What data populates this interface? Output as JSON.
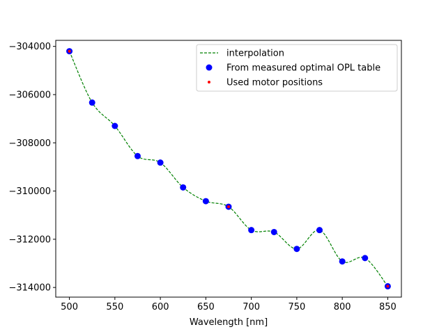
{
  "chart_data": {
    "type": "line",
    "title": "",
    "xlabel": "Wavelength [nm]",
    "ylabel": "",
    "xlim": [
      485,
      865
    ],
    "ylim": [
      -314400,
      -303750
    ],
    "xticks": [
      500,
      550,
      600,
      650,
      700,
      750,
      800,
      850
    ],
    "yticks": [
      -314000,
      -312000,
      -310000,
      -308000,
      -306000,
      -304000
    ],
    "xtick_labels": [
      "500",
      "550",
      "600",
      "650",
      "700",
      "750",
      "800",
      "850"
    ],
    "ytick_labels": [
      "−314000",
      "−312000",
      "−310000",
      "−308000",
      "−306000",
      "−304000"
    ],
    "grid": false,
    "legend_position": "top-right",
    "series": [
      {
        "name": "interpolation",
        "style": "dashed-line",
        "color": "#008000",
        "x": [
          500,
          525,
          550,
          575,
          600,
          625,
          650,
          675,
          700,
          725,
          750,
          775,
          800,
          825,
          850
        ],
        "y": [
          -304200,
          -306330,
          -307300,
          -308550,
          -308820,
          -309850,
          -310420,
          -310650,
          -311620,
          -311700,
          -312400,
          -311620,
          -312920,
          -312780,
          -313950
        ]
      },
      {
        "name": "From measured optimal OPL table",
        "style": "markers",
        "color": "#0000ff",
        "x": [
          500,
          525,
          550,
          575,
          600,
          625,
          650,
          675,
          700,
          725,
          750,
          775,
          800,
          825,
          850
        ],
        "y": [
          -304200,
          -306330,
          -307300,
          -308550,
          -308820,
          -309850,
          -310420,
          -310650,
          -311620,
          -311700,
          -312400,
          -311620,
          -312920,
          -312780,
          -313950
        ]
      },
      {
        "name": "Used motor positions",
        "style": "small-markers",
        "color": "#ff0000",
        "x": [
          500,
          675,
          850
        ],
        "y": [
          -304200,
          -310650,
          -313950
        ]
      }
    ]
  }
}
